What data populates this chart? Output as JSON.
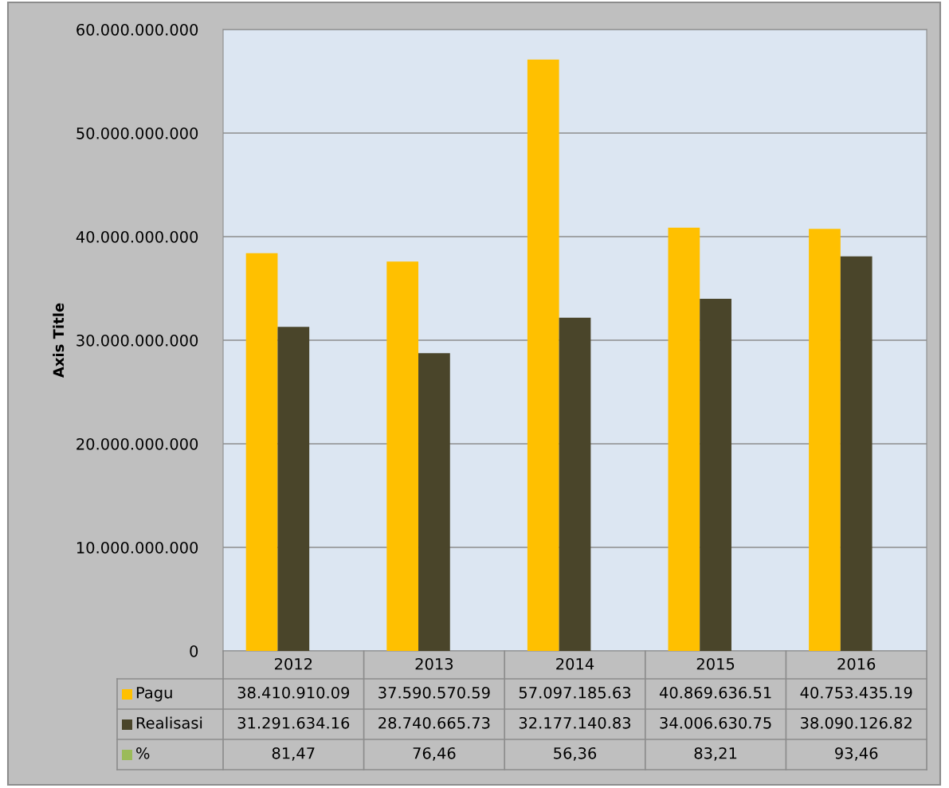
{
  "chart_data": {
    "type": "bar",
    "ylabel": "Axis Title",
    "categories": [
      "2012",
      "2013",
      "2014",
      "2015",
      "2016"
    ],
    "series": [
      {
        "name": "Pagu",
        "color": "#ffc000",
        "values": [
          38410910090,
          37590570590,
          57097185630,
          40869636510,
          40753435190
        ],
        "value_labels": [
          "38.410.910.09",
          "37.590.570.59",
          "57.097.185.63",
          "40.869.636.51",
          "40.753.435.19"
        ]
      },
      {
        "name": "Realisasi",
        "color": "#4a452a",
        "values": [
          31291634160,
          28740665730,
          32177140830,
          34006630750,
          38090126820
        ],
        "value_labels": [
          "31.291.634.16",
          "28.740.665.73",
          "32.177.140.83",
          "34.006.630.75",
          "38.090.126.82"
        ]
      },
      {
        "name": "%",
        "color": "#9bbb59",
        "values": [
          81.47,
          76.46,
          56.36,
          83.21,
          93.46
        ],
        "value_labels": [
          "81,47",
          "76,46",
          "56,36",
          "83,21",
          "93,46"
        ]
      }
    ],
    "ylim": [
      0,
      60000000000
    ],
    "yticks": [
      {
        "value": 0,
        "label": "0"
      },
      {
        "value": 10000000000,
        "label": "10.000.000.000"
      },
      {
        "value": 20000000000,
        "label": "20.000.000.000"
      },
      {
        "value": 30000000000,
        "label": "30.000.000.000"
      },
      {
        "value": 40000000000,
        "label": "40.000.000.000"
      },
      {
        "value": 50000000000,
        "label": "50.000.000.000"
      },
      {
        "value": 60000000000,
        "label": "60.000.000.000"
      }
    ],
    "grid": "y",
    "legend": "bottom left"
  }
}
